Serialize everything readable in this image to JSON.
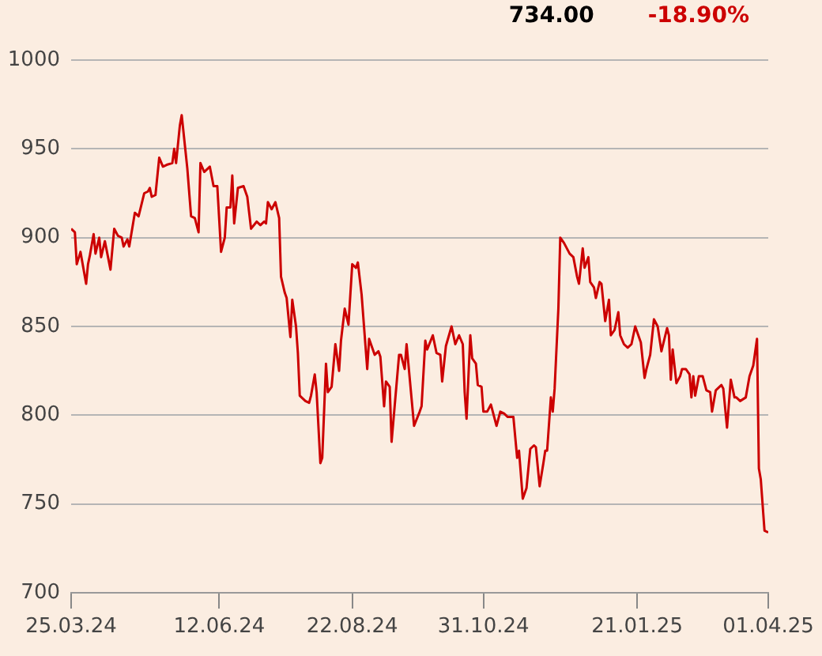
{
  "chart_data": {
    "type": "line",
    "annotations": [
      "734.00",
      "-18.90%"
    ],
    "x": [
      "2024-03-25",
      "2024-03-27",
      "2024-03-28",
      "2024-03-30",
      "2024-04-02",
      "2024-04-03",
      "2024-04-04",
      "2024-04-06",
      "2024-04-07",
      "2024-04-09",
      "2024-04-10",
      "2024-04-12",
      "2024-04-15",
      "2024-04-17",
      "2024-04-19",
      "2024-04-21",
      "2024-04-22",
      "2024-04-24",
      "2024-04-25",
      "2024-04-28",
      "2024-04-30",
      "2024-05-03",
      "2024-05-05",
      "2024-05-06",
      "2024-05-07",
      "2024-05-09",
      "2024-05-11",
      "2024-05-13",
      "2024-05-15",
      "2024-05-18",
      "2024-05-19",
      "2024-05-20",
      "2024-05-22",
      "2024-05-23",
      "2024-05-26",
      "2024-05-28",
      "2024-05-30",
      "2024-06-01",
      "2024-06-02",
      "2024-06-04",
      "2024-06-07",
      "2024-06-09",
      "2024-06-11",
      "2024-06-13",
      "2024-06-15",
      "2024-06-16",
      "2024-06-18",
      "2024-06-19",
      "2024-06-20",
      "2024-06-22",
      "2024-06-25",
      "2024-06-27",
      "2024-06-29",
      "2024-07-02",
      "2024-07-04",
      "2024-07-06",
      "2024-07-07",
      "2024-07-08",
      "2024-07-10",
      "2024-07-12",
      "2024-07-14",
      "2024-07-15",
      "2024-07-17",
      "2024-07-18",
      "2024-07-20",
      "2024-07-21",
      "2024-07-23",
      "2024-07-24",
      "2024-07-25",
      "2024-07-28",
      "2024-07-30",
      "2024-07-31",
      "2024-08-02",
      "2024-08-03",
      "2024-08-05",
      "2024-08-06",
      "2024-08-08",
      "2024-08-09",
      "2024-08-11",
      "2024-08-13",
      "2024-08-15",
      "2024-08-16",
      "2024-08-18",
      "2024-08-20",
      "2024-08-22",
      "2024-08-24",
      "2024-08-25",
      "2024-08-27",
      "2024-08-30",
      "2024-08-31",
      "2024-09-03",
      "2024-09-05",
      "2024-09-06",
      "2024-09-08",
      "2024-09-09",
      "2024-09-11",
      "2024-09-12",
      "2024-09-16",
      "2024-09-17",
      "2024-09-19",
      "2024-09-20",
      "2024-09-24",
      "2024-09-27",
      "2024-09-28",
      "2024-09-30",
      "2024-10-01",
      "2024-10-04",
      "2024-10-06",
      "2024-10-08",
      "2024-10-09",
      "2024-10-11",
      "2024-10-14",
      "2024-10-16",
      "2024-10-18",
      "2024-10-20",
      "2024-10-21",
      "2024-10-22",
      "2024-10-24",
      "2024-10-25",
      "2024-10-27",
      "2024-10-28",
      "2024-10-30",
      "2024-10-31",
      "2024-11-02",
      "2024-11-04",
      "2024-11-07",
      "2024-11-09",
      "2024-11-11",
      "2024-11-13",
      "2024-11-16",
      "2024-11-18",
      "2024-11-19",
      "2024-11-21",
      "2024-11-23",
      "2024-11-25",
      "2024-11-27",
      "2024-11-28",
      "2024-11-30",
      "2024-12-02",
      "2024-12-03",
      "2024-12-04",
      "2024-12-06",
      "2024-12-07",
      "2024-12-08",
      "2024-12-10",
      "2024-12-11",
      "2024-12-13",
      "2024-12-16",
      "2024-12-18",
      "2024-12-20",
      "2024-12-21",
      "2024-12-23",
      "2024-12-24",
      "2024-12-26",
      "2024-12-27",
      "2024-12-29",
      "2024-12-30",
      "2025-01-01",
      "2025-01-02",
      "2025-01-04",
      "2025-01-06",
      "2025-01-07",
      "2025-01-09",
      "2025-01-11",
      "2025-01-12",
      "2025-01-14",
      "2025-01-16",
      "2025-01-18",
      "2025-01-20",
      "2025-01-23",
      "2025-01-25",
      "2025-01-26",
      "2025-01-28",
      "2025-01-30",
      "2025-02-01",
      "2025-02-03",
      "2025-02-06",
      "2025-02-07",
      "2025-02-08",
      "2025-02-09",
      "2025-02-11",
      "2025-02-13",
      "2025-02-14",
      "2025-02-16",
      "2025-02-18",
      "2025-02-19",
      "2025-02-20",
      "2025-02-21",
      "2025-02-23",
      "2025-02-25",
      "2025-02-27",
      "2025-03-01",
      "2025-03-02",
      "2025-03-04",
      "2025-03-05",
      "2025-03-07",
      "2025-03-08",
      "2025-03-10",
      "2025-03-12",
      "2025-03-14",
      "2025-03-15",
      "2025-03-17",
      "2025-03-20",
      "2025-03-22",
      "2025-03-24",
      "2025-03-26",
      "2025-03-27",
      "2025-03-28",
      "2025-03-30",
      "2025-04-01"
    ],
    "series": [
      {
        "color": "#cc0000",
        "values": [
          905,
          903,
          885,
          892,
          874,
          885,
          890,
          902,
          891,
          900,
          889,
          898,
          882,
          905,
          901,
          900,
          895,
          899,
          895,
          914,
          912,
          925,
          926,
          928,
          923,
          924,
          945,
          940,
          941,
          942,
          950,
          942,
          963,
          969,
          939,
          912,
          911,
          903,
          942,
          937,
          940,
          929,
          929,
          892,
          900,
          917,
          917,
          935,
          908,
          928,
          929,
          923,
          905,
          909,
          907,
          909,
          908,
          920,
          916,
          920,
          911,
          878,
          869,
          866,
          844,
          865,
          850,
          835,
          811,
          808,
          807,
          811,
          823,
          813,
          773,
          776,
          829,
          813,
          816,
          840,
          825,
          842,
          860,
          851,
          885,
          883,
          886,
          868,
          826,
          843,
          834,
          836,
          833,
          805,
          819,
          816,
          785,
          834,
          834,
          826,
          840,
          794,
          802,
          805,
          842,
          837,
          845,
          835,
          834,
          819,
          839,
          850,
          840,
          845,
          840,
          813,
          798,
          845,
          832,
          829,
          817,
          816,
          802,
          802,
          806,
          794,
          802,
          801,
          799,
          799,
          776,
          780,
          753,
          759,
          781,
          783,
          782,
          760,
          773,
          780,
          780,
          810,
          802,
          815,
          860,
          900,
          897,
          891,
          889,
          878,
          874,
          894,
          883,
          889,
          875,
          872,
          866,
          875,
          874,
          853,
          865,
          845,
          848,
          858,
          845,
          840,
          838,
          840,
          850,
          841,
          821,
          826,
          834,
          854,
          850,
          836,
          849,
          845,
          820,
          837,
          818,
          822,
          826,
          826,
          823,
          810,
          822,
          811,
          822,
          822,
          814,
          813,
          802,
          814,
          815,
          817,
          815,
          793,
          820,
          810,
          810,
          808,
          810,
          822,
          828,
          843,
          770,
          764,
          735,
          734
        ]
      }
    ],
    "xlim": [
      "2024-03-25",
      "2025-04-01"
    ],
    "xticks": [
      {
        "value": "2024-03-25",
        "label": "25.03.24"
      },
      {
        "value": "2024-06-12",
        "label": "12.06.24"
      },
      {
        "value": "2024-08-22",
        "label": "22.08.24"
      },
      {
        "value": "2024-10-31",
        "label": "31.10.24"
      },
      {
        "value": "2025-01-21",
        "label": "21.01.25"
      },
      {
        "value": "2025-04-01",
        "label": "01.04.25"
      }
    ],
    "ylim": [
      700,
      1000
    ],
    "yticks": [
      700,
      750,
      800,
      850,
      900,
      950,
      1000
    ],
    "grid": "y",
    "legend": false,
    "marker": "none",
    "line_style": "solid"
  }
}
